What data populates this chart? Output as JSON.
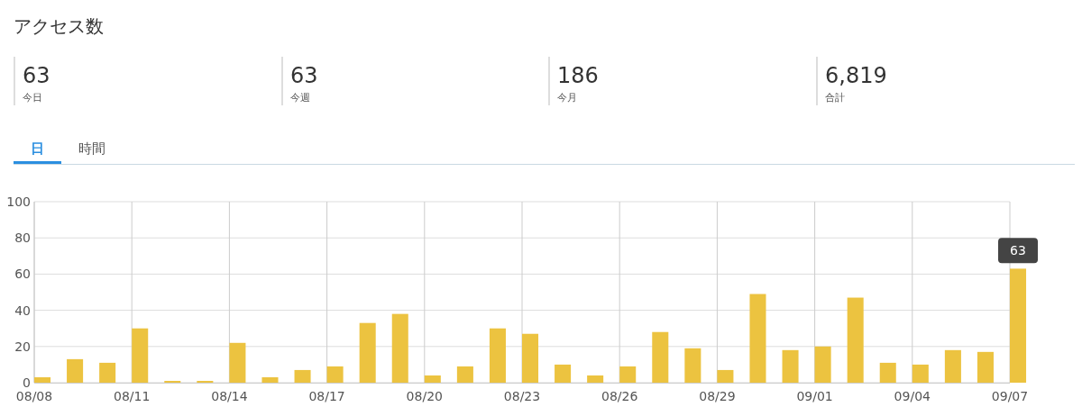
{
  "chart_data": {
    "type": "bar",
    "title": "アクセス数",
    "categories": [
      "08/08",
      null,
      null,
      "08/11",
      null,
      null,
      "08/14",
      null,
      null,
      "08/17",
      null,
      null,
      "08/20",
      null,
      null,
      "08/23",
      null,
      null,
      "08/26",
      null,
      null,
      "08/29",
      null,
      null,
      "09/01",
      null,
      null,
      "09/04",
      null,
      null,
      "09/07"
    ],
    "values": [
      3,
      13,
      11,
      30,
      1,
      1,
      22,
      3,
      7,
      9,
      33,
      38,
      4,
      9,
      30,
      27,
      10,
      4,
      9,
      28,
      19,
      7,
      49,
      18,
      20,
      47,
      11,
      10,
      18,
      17,
      63
    ],
    "color": "#ecc340",
    "ylim": [
      0,
      100
    ],
    "yticks": [
      0,
      20,
      40,
      60,
      80,
      100
    ],
    "grid": true,
    "annotations": [
      "63",
      "今日",
      "63",
      "今週",
      "186",
      "今月",
      "6,819",
      "合計",
      "日",
      "時間",
      {
        "text": "63",
        "x": "09/07",
        "y": 63
      }
    ]
  }
}
